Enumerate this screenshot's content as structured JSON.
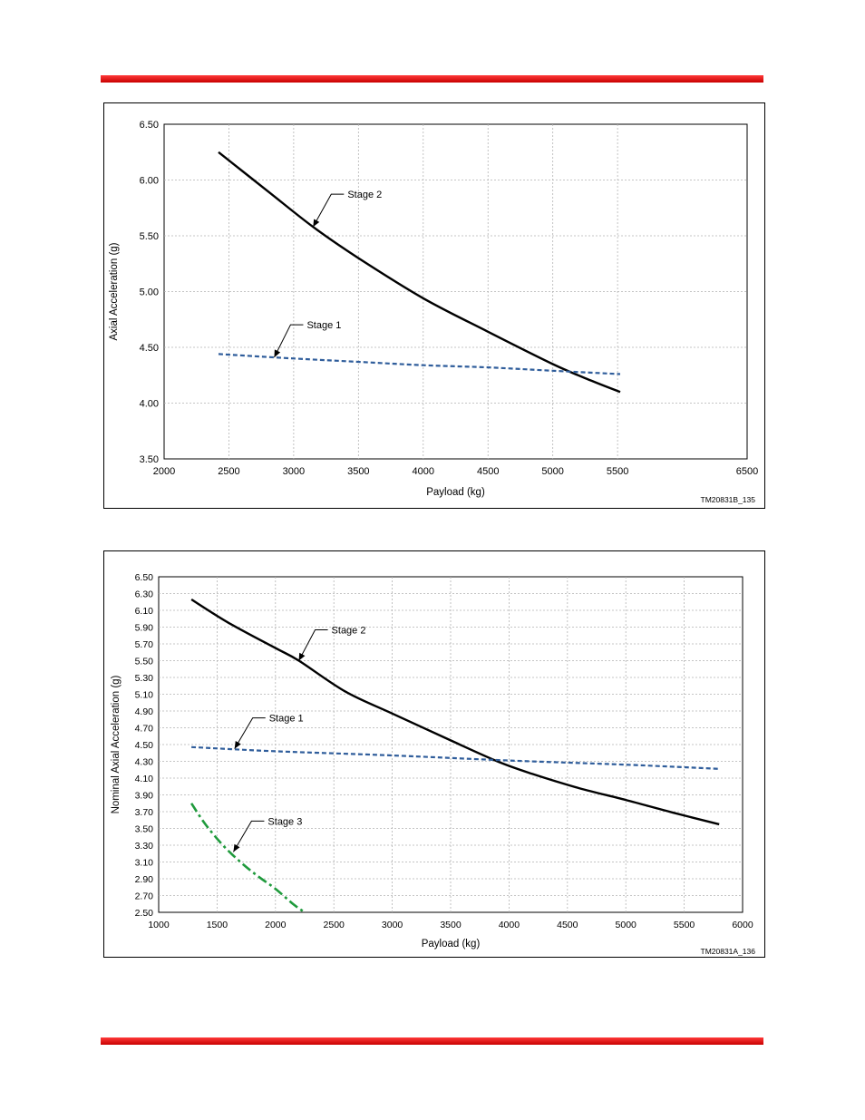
{
  "colors": {
    "rule": "#e00000",
    "stage1": "#2f5d9b",
    "stage2": "#000000",
    "stage3": "#1f9a3c",
    "grid": "#b3b3b3"
  },
  "chart_data": [
    {
      "type": "line",
      "xlabel": "Payload (kg)",
      "ylabel": "Axial Acceleration (g)",
      "figure_id": "TM20831B_135",
      "xlim": [
        2000,
        6500
      ],
      "ylim": [
        3.5,
        6.5
      ],
      "x_ticks": [
        2000,
        2500,
        3000,
        3500,
        4000,
        4500,
        5000,
        5500,
        6500
      ],
      "x_tick_labels": [
        "2000",
        "2500",
        "3000",
        "3500",
        "4000",
        "4500",
        "5000",
        "5500",
        "6500"
      ],
      "y_ticks": [
        3.5,
        4.0,
        4.5,
        5.0,
        5.5,
        6.0,
        6.5
      ],
      "y_tick_labels": [
        "3.50",
        "4.00",
        "4.50",
        "5.00",
        "5.50",
        "6.00",
        "6.50"
      ],
      "grid": true,
      "series": [
        {
          "name": "Stage 2",
          "style": "solid",
          "x": [
            2420,
            2800,
            3150,
            3500,
            4000,
            4500,
            5000,
            5300,
            5520
          ],
          "y": [
            6.25,
            5.9,
            5.58,
            5.3,
            4.94,
            4.64,
            4.35,
            4.2,
            4.1
          ]
        },
        {
          "name": "Stage 1",
          "style": "dashed",
          "x": [
            2420,
            3000,
            3500,
            4000,
            4500,
            5000,
            5520
          ],
          "y": [
            4.44,
            4.4,
            4.37,
            4.34,
            4.32,
            4.29,
            4.26
          ]
        }
      ],
      "annotations": [
        {
          "text": "Stage 2",
          "series": "Stage 2",
          "x": 3150,
          "y": 5.58
        },
        {
          "text": "Stage 1",
          "series": "Stage 1",
          "x": 2850,
          "y": 4.41
        }
      ]
    },
    {
      "type": "line",
      "xlabel": "Payload (kg)",
      "ylabel": "Nominal Axial Acceleration (g)",
      "figure_id": "TM20831A_136",
      "xlim": [
        1000,
        6000
      ],
      "ylim": [
        2.5,
        6.5
      ],
      "x_ticks": [
        1000,
        1500,
        2000,
        2500,
        3000,
        3500,
        4000,
        4500,
        5000,
        5500,
        6000
      ],
      "x_tick_labels": [
        "1000",
        "1500",
        "2000",
        "2500",
        "3000",
        "3500",
        "4000",
        "4500",
        "5000",
        "5500",
        "6000"
      ],
      "y_ticks": [
        2.5,
        2.7,
        2.9,
        3.1,
        3.3,
        3.5,
        3.7,
        3.9,
        4.1,
        4.3,
        4.5,
        4.7,
        4.9,
        5.1,
        5.3,
        5.5,
        5.7,
        5.9,
        6.1,
        6.3,
        6.5
      ],
      "y_tick_labels": [
        "2.50",
        "2.70",
        "2.90",
        "3.10",
        "3.30",
        "3.50",
        "3.70",
        "3.90",
        "4.10",
        "4.30",
        "4.50",
        "4.70",
        "4.90",
        "5.10",
        "5.30",
        "5.50",
        "5.70",
        "5.90",
        "6.10",
        "6.30",
        "6.50"
      ],
      "grid": true,
      "series": [
        {
          "name": "Stage 2",
          "style": "solid",
          "x": [
            1280,
            1600,
            2000,
            2200,
            2600,
            3000,
            3500,
            3900,
            4200,
            4600,
            5000,
            5400,
            5800
          ],
          "y": [
            6.23,
            5.95,
            5.65,
            5.5,
            5.13,
            4.87,
            4.55,
            4.3,
            4.15,
            3.98,
            3.84,
            3.69,
            3.55
          ]
        },
        {
          "name": "Stage 1",
          "style": "dashed",
          "x": [
            1280,
            2000,
            3000,
            4000,
            5000,
            5800
          ],
          "y": [
            4.47,
            4.42,
            4.37,
            4.31,
            4.26,
            4.21
          ]
        },
        {
          "name": "Stage 3",
          "style": "dashdot",
          "x": [
            1280,
            1400,
            1550,
            1700,
            1850,
            2000,
            2150,
            2250
          ],
          "y": [
            3.8,
            3.55,
            3.3,
            3.1,
            2.93,
            2.78,
            2.6,
            2.5
          ]
        }
      ],
      "annotations": [
        {
          "text": "Stage 2",
          "series": "Stage 2",
          "x": 2200,
          "y": 5.5
        },
        {
          "text": "Stage 1",
          "series": "Stage 1",
          "x": 1650,
          "y": 4.45
        },
        {
          "text": "Stage 3",
          "series": "Stage 3",
          "x": 1640,
          "y": 3.22
        }
      ]
    }
  ]
}
